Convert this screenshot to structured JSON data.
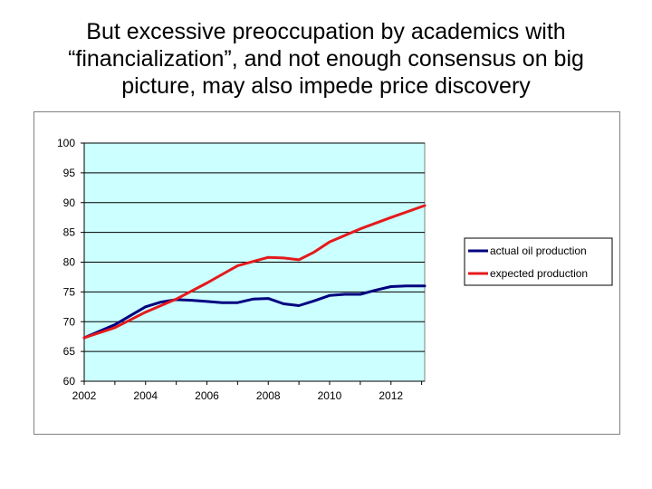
{
  "slide": {
    "title_lines": [
      "But excessive preoccupation by academics with",
      "“financialization”, and not enough consensus on big",
      "picture, may also impede price discovery"
    ]
  },
  "colors": {
    "plot_background": "#ccffff",
    "gridline": "#000000",
    "actual": "#000080",
    "expected": "#e41a1c"
  },
  "chart_data": {
    "type": "line",
    "title": "",
    "xlabel": "",
    "ylabel": "",
    "xlim": [
      2002,
      2013.1
    ],
    "ylim": [
      60,
      100
    ],
    "x_ticks": [
      2002,
      2004,
      2006,
      2008,
      2010,
      2012
    ],
    "y_ticks": [
      100,
      95,
      90,
      85,
      80,
      75,
      70,
      65,
      60
    ],
    "grid": "horizontal",
    "legend_position": "right",
    "series": [
      {
        "name": "actual oil production",
        "color": "#000080",
        "x": [
          2002,
          2003,
          2004,
          2004.5,
          2005,
          2005.5,
          2006,
          2006.5,
          2007,
          2007.5,
          2008,
          2008.5,
          2009,
          2009.5,
          2010,
          2010.5,
          2011,
          2011.5,
          2012,
          2012.5,
          2013.1
        ],
        "y": [
          67.3,
          69.5,
          72.5,
          73.3,
          73.7,
          73.6,
          73.4,
          73.2,
          73.2,
          73.8,
          73.9,
          73.0,
          72.7,
          73.5,
          74.4,
          74.6,
          74.6,
          75.3,
          75.9,
          76.0,
          76.0
        ]
      },
      {
        "name": "expected production",
        "color": "#e41a1c",
        "x": [
          2002,
          2003,
          2004,
          2005,
          2006,
          2007,
          2008,
          2008.5,
          2009,
          2009.5,
          2010,
          2011,
          2012,
          2013.1
        ],
        "y": [
          67.3,
          69.0,
          71.6,
          73.8,
          76.5,
          79.4,
          80.8,
          80.7,
          80.4,
          81.7,
          83.4,
          85.6,
          87.5,
          89.5
        ]
      }
    ]
  }
}
